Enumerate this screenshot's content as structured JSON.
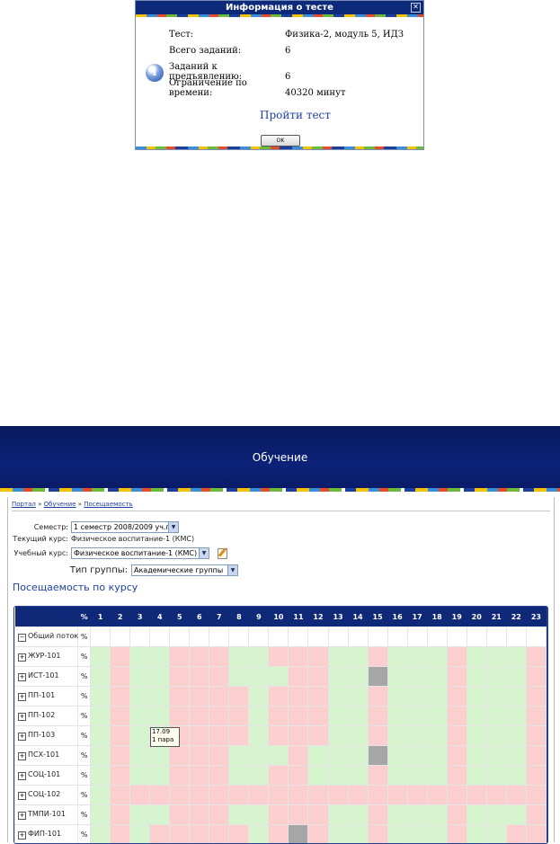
{
  "dialog": {
    "title": "Информация о тесте",
    "close": "✕",
    "rows": [
      {
        "label": "Тест:",
        "value": "Физика-2, модуль 5, ИДЗ"
      },
      {
        "label": "Всего заданий:",
        "value": "6"
      },
      {
        "label": "Заданий к предъявлению:",
        "value": "6"
      },
      {
        "label": "Ограничение по времени:",
        "value": "40320 минут"
      }
    ],
    "info_icon": "i",
    "take_test": "Пройти тест",
    "ok": "OK"
  },
  "banner": {
    "title": "Обучение"
  },
  "breadcrumb": {
    "items": [
      "Портал",
      "Обучение",
      "Посещаемость"
    ],
    "sep": "»"
  },
  "form": {
    "semester_label": "Семестр:",
    "semester_value": "1 семестр 2008/2009 уч.г",
    "current_course_label": "Текущий курс:",
    "current_course_value": "Физическое воспитание-1 (КМС)",
    "study_course_label": "Учебный курс:",
    "study_course_value": "Физическое воспитание-1 (КМС)",
    "group_type_label": "Тип группы:",
    "group_type_value": "Академические группы"
  },
  "heading": "Посещаемость по курсу",
  "grid": {
    "pct_header": "%",
    "days": [
      "1",
      "2",
      "3",
      "4",
      "5",
      "6",
      "7",
      "8",
      "9",
      "10",
      "11",
      "12",
      "13",
      "14",
      "15",
      "16",
      "17",
      "18",
      "19",
      "20",
      "21",
      "22",
      "23"
    ],
    "root": {
      "name": "Общий поток",
      "pct": "%"
    },
    "rows": [
      {
        "name": "ЖУР-101",
        "pct": "%",
        "cells": "GRGGRRRGGRRRGGRGGGRGGGR"
      },
      {
        "name": "ИСТ-101",
        "pct": "%",
        "cells": "GRGGRRRGGGRRGGXGGGRGGGR"
      },
      {
        "name": "ПП-101",
        "pct": "%",
        "cells": "GRGGRRRRGRRRGGRGGGRGGGR"
      },
      {
        "name": "ПП-102",
        "pct": "%",
        "cells": "GRGGRRRRGRRRGGRGGGRGGGR"
      },
      {
        "name": "ПП-103",
        "pct": "%",
        "cells": "GRGGRRRRGRRRGGRGGGRGGGR"
      },
      {
        "name": "ПСХ-101",
        "pct": "%",
        "cells": "GRGGRRRGGGRGGGXGGGRGGGR"
      },
      {
        "name": "СОЦ-101",
        "pct": "%",
        "cells": "GRGGRRRGGRRGGGRGGGRGGGR"
      },
      {
        "name": "СОЦ-102",
        "pct": "%",
        "cells": "GRRRRRRRRRRRRRRRRRRRRRR"
      },
      {
        "name": "ТМПИ-101",
        "pct": "%",
        "cells": "GRGGRRRGGRRRGGRGGGRGGGR"
      },
      {
        "name": "ФИП-101",
        "pct": "%",
        "cells": "GRGRRRRRGRXRGGRGGGRGGRR"
      }
    ],
    "tooltip": {
      "date": "17.09",
      "slot": "1 пара"
    },
    "colors": {
      "present": "#d6f5cf",
      "absent": "#fccfcf",
      "no_data": "#a6a6a6",
      "header": "#102878"
    }
  }
}
